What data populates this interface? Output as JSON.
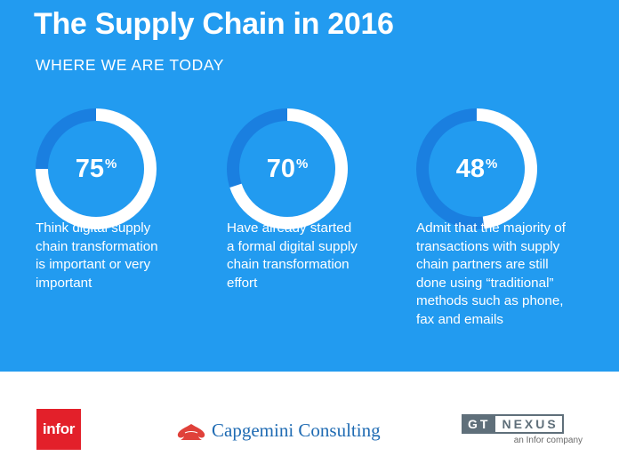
{
  "header": {
    "title": "The Supply Chain in 2016",
    "subtitle": "WHERE WE ARE TODAY"
  },
  "chart_data": {
    "type": "pie",
    "title": "The Supply Chain in 2016",
    "subtitle": "WHERE WE ARE TODAY",
    "series": [
      {
        "value": 75,
        "label": "75%",
        "description": "Think digital supply chain transformation is important or very important"
      },
      {
        "value": 70,
        "label": "70%",
        "description": "Have already started a formal digital supply chain transformation effort"
      },
      {
        "value": 48,
        "label": "48%",
        "description": "Admit that the majority of transactions with supply chain partners are still done using “traditional” methods such as phone, fax and emails"
      }
    ]
  },
  "stats": [
    {
      "number": "75",
      "sign": "%",
      "lines": [
        "Think digital supply",
        "chain transformation",
        "is important or very",
        "important"
      ]
    },
    {
      "number": "70",
      "sign": "%",
      "lines": [
        "Have already started",
        "a formal digital supply",
        "chain transformation",
        "effort"
      ]
    },
    {
      "number": "48",
      "sign": "%",
      "lines": [
        "Admit that the majority of",
        "transactions with supply",
        "chain partners are still",
        "done using “traditional”",
        "methods such as phone,",
        "fax and emails"
      ]
    }
  ],
  "logos": {
    "infor": "infor",
    "capgemini": "Capgemini Consulting",
    "gt_left": "GT",
    "gt_right": "NEXUS",
    "gt_tagline": "an Infor company"
  },
  "colors": {
    "background": "#229bf0",
    "ring_track": "#1a7fe0",
    "ring_fill": "#ffffff",
    "infor_red": "#e3202a",
    "capgemini_blue": "#1f6bb3"
  }
}
